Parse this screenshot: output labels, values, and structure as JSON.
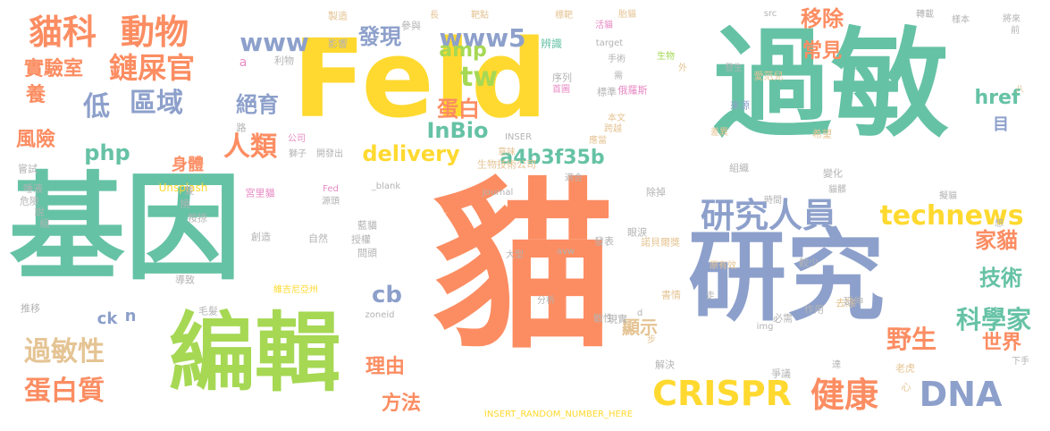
{
  "palette": [
    "#66c2a5",
    "#fc8d62",
    "#8da0cb",
    "#e78ac3",
    "#a6d854",
    "#ffd92f",
    "#e5c494",
    "#b3b3b3"
  ],
  "words": [
    {
      "t": "貓",
      "c": 1
    },
    {
      "t": "基因",
      "c": 0
    },
    {
      "t": "過敏",
      "c": 0
    },
    {
      "t": "Feld",
      "c": 5
    },
    {
      "t": "研究",
      "c": 2
    },
    {
      "t": "編輯",
      "c": 4
    },
    {
      "t": "貓科",
      "c": 1
    },
    {
      "t": "動物",
      "c": 1
    },
    {
      "t": "鏈屎官",
      "c": 1
    },
    {
      "t": "區域",
      "c": 2
    },
    {
      "t": "低",
      "c": 2
    },
    {
      "t": "實驗室",
      "c": 1
    },
    {
      "t": "養",
      "c": 1
    },
    {
      "t": "風險",
      "c": 1
    },
    {
      "t": "過敏性",
      "c": 6
    },
    {
      "t": "蛋白質",
      "c": 1
    },
    {
      "t": "php",
      "c": 0
    },
    {
      "t": "人類",
      "c": 1
    },
    {
      "t": "身體",
      "c": 1
    },
    {
      "t": "絕育",
      "c": 2
    },
    {
      "t": "發現",
      "c": 2
    },
    {
      "t": "www",
      "c": 2
    },
    {
      "t": "www5",
      "c": 2
    },
    {
      "t": "amp",
      "c": 4
    },
    {
      "t": "tw",
      "c": 4
    },
    {
      "t": "蛋白",
      "c": 1
    },
    {
      "t": "InBio",
      "c": 0
    },
    {
      "t": "delivery",
      "c": 5
    },
    {
      "t": "a4b3f35b",
      "c": 0
    },
    {
      "t": "移除",
      "c": 1
    },
    {
      "t": "常見",
      "c": 1
    },
    {
      "t": "研究人員",
      "c": 2
    },
    {
      "t": "technews",
      "c": 5
    },
    {
      "t": "家貓",
      "c": 1
    },
    {
      "t": "技術",
      "c": 0
    },
    {
      "t": "科學家",
      "c": 0
    },
    {
      "t": "野生",
      "c": 1
    },
    {
      "t": "世界",
      "c": 1
    },
    {
      "t": "CRISPR",
      "c": 5
    },
    {
      "t": "健康",
      "c": 1
    },
    {
      "t": "DNA",
      "c": 2
    },
    {
      "t": "cb",
      "c": 2
    },
    {
      "t": "ck",
      "c": 2
    },
    {
      "t": "n",
      "c": 2
    },
    {
      "t": "顯示",
      "c": 6
    },
    {
      "t": "理由",
      "c": 1
    },
    {
      "t": "方法",
      "c": 1
    },
    {
      "t": "href",
      "c": 0
    },
    {
      "t": "目",
      "c": 2
    },
    {
      "t": "Unsplash",
      "c": 5
    },
    {
      "t": "公司",
      "c": 3
    },
    {
      "t": "a",
      "c": 3
    },
    {
      "t": "利物",
      "c": 7
    },
    {
      "t": "影響",
      "c": 7
    },
    {
      "t": "參與",
      "c": 7
    },
    {
      "t": "製造",
      "c": 6
    },
    {
      "t": "長",
      "c": 6
    },
    {
      "t": "靶點",
      "c": 6
    },
    {
      "t": "標靶",
      "c": 6
    },
    {
      "t": "活貓",
      "c": 3
    },
    {
      "t": "胎貓",
      "c": 6
    },
    {
      "t": "src",
      "c": 7
    },
    {
      "t": "轉載",
      "c": 7
    },
    {
      "t": "樣本",
      "c": 7
    },
    {
      "t": "將來",
      "c": 7
    },
    {
      "t": "前",
      "c": 7
    },
    {
      "t": "辨識",
      "c": 0
    },
    {
      "t": "target",
      "c": 7
    },
    {
      "t": "生物",
      "c": 4
    },
    {
      "t": "外",
      "c": 6
    },
    {
      "t": "發生",
      "c": 7
    },
    {
      "t": "序列",
      "c": 7
    },
    {
      "t": "首圖",
      "c": 3
    },
    {
      "t": "標準",
      "c": 7
    },
    {
      "t": "手術",
      "c": 7
    },
    {
      "t": "俄羅斯",
      "c": 3
    },
    {
      "t": "需",
      "c": 7
    },
    {
      "t": "愛范兒",
      "c": 6
    },
    {
      "t": "本文",
      "c": 6
    },
    {
      "t": "跨越",
      "c": 6
    },
    {
      "t": "應當",
      "c": 6
    },
    {
      "t": "來源",
      "c": 2
    },
    {
      "t": "希望",
      "c": 6
    },
    {
      "t": "八",
      "c": 6
    },
    {
      "t": "差異",
      "c": 6
    },
    {
      "t": "獅子",
      "c": 7
    },
    {
      "t": "嘗試",
      "c": 7
    },
    {
      "t": "唾液",
      "c": 7
    },
    {
      "t": "危險",
      "c": 7
    },
    {
      "t": "說",
      "c": 7
    },
    {
      "t": "組",
      "c": 7
    },
    {
      "t": "隻",
      "c": 7
    },
    {
      "t": "撓",
      "c": 7
    },
    {
      "t": "按掠",
      "c": 7
    },
    {
      "t": "導致",
      "c": 7
    },
    {
      "t": "毛髮",
      "c": 7
    },
    {
      "t": "推移",
      "c": 7
    },
    {
      "t": "路",
      "c": 7
    },
    {
      "t": "開發出",
      "c": 7
    },
    {
      "t": "INSER",
      "c": 7
    },
    {
      "t": "意味",
      "c": 6
    },
    {
      "t": "生物技術公司",
      "c": 6
    },
    {
      "t": "組織",
      "c": 7
    },
    {
      "t": "變化",
      "c": 7
    },
    {
      "t": "貓髒",
      "c": 7
    },
    {
      "t": "除掉",
      "c": 7
    },
    {
      "t": "適合",
      "c": 7
    },
    {
      "t": "時間",
      "c": 7
    },
    {
      "t": "_blank",
      "c": 7
    },
    {
      "t": "Fed",
      "c": 3
    },
    {
      "t": "宮里貓",
      "c": 3
    },
    {
      "t": "源頭",
      "c": 7
    },
    {
      "t": "Journal",
      "c": 7
    },
    {
      "t": "創造",
      "c": 7
    },
    {
      "t": "藍貓",
      "c": 7
    },
    {
      "t": "授權",
      "c": 7
    },
    {
      "t": "自然",
      "c": 7
    },
    {
      "t": "間頭",
      "c": 7
    },
    {
      "t": "眼淚",
      "c": 7
    },
    {
      "t": "諾貝爾獎",
      "c": 6
    },
    {
      "t": "原有效",
      "c": 6
    },
    {
      "t": "較少",
      "c": 7
    },
    {
      "t": "avw",
      "c": 7
    },
    {
      "t": "發表",
      "c": 7
    },
    {
      "t": "大型",
      "c": 7
    },
    {
      "t": "維吉尼亞州",
      "c": 5
    },
    {
      "t": "分析",
      "c": 7
    },
    {
      "t": "zoneid",
      "c": 7
    },
    {
      "t": "img",
      "c": 7
    },
    {
      "t": "作用",
      "c": 7
    },
    {
      "t": "去除",
      "c": 6
    },
    {
      "t": "延伸",
      "c": 7
    },
    {
      "t": "必需",
      "c": 7
    },
    {
      "t": "書情",
      "c": 6
    },
    {
      "t": "敏性",
      "c": 7
    },
    {
      "t": "d",
      "c": 7
    },
    {
      "t": "現實",
      "c": 7
    },
    {
      "t": "步",
      "c": 6
    },
    {
      "t": "解決",
      "c": 7
    },
    {
      "t": "爭議",
      "c": 7
    },
    {
      "t": "達",
      "c": 7
    },
    {
      "t": "老虎",
      "c": 6
    },
    {
      "t": "心",
      "c": 6
    },
    {
      "t": "下手",
      "c": 7
    },
    {
      "t": "擬貓",
      "c": 7
    },
    {
      "t": "想",
      "c": 7
    },
    {
      "t": "走",
      "c": 7
    },
    {
      "t": "INSERT_RANDOM_NUMBER_HERE",
      "c": 5
    }
  ]
}
